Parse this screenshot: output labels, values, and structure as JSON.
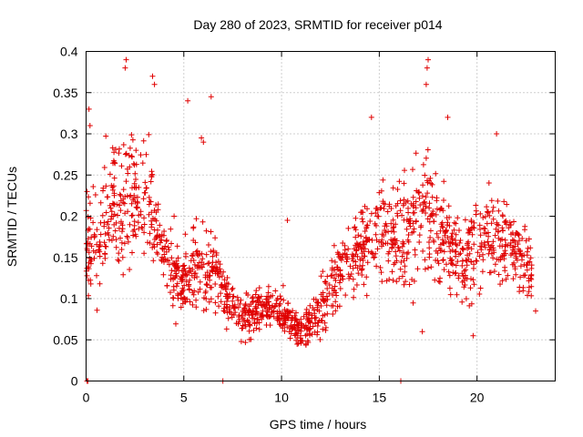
{
  "chart_data": {
    "type": "scatter",
    "title": "Day 280 of 2023, SRMTID for receiver p014",
    "xlabel": "GPS time / hours",
    "ylabel": "SRMTID / TECUs",
    "xlim": [
      0,
      24
    ],
    "ylim": [
      0,
      0.4
    ],
    "xticks": [
      0,
      5,
      10,
      15,
      20
    ],
    "xtick_labels": [
      "0",
      "5",
      "10",
      "15",
      "20"
    ],
    "yticks": [
      0,
      0.05,
      0.1,
      0.15,
      0.2,
      0.25,
      0.3,
      0.35,
      0.4
    ],
    "ytick_labels": [
      "0",
      "0.05",
      "0.1",
      "0.15",
      "0.2",
      "0.25",
      "0.3",
      "0.35",
      "0.4"
    ],
    "grid": true,
    "marker": "+",
    "color": "#e00000",
    "series": [
      {
        "name": "SRMTID",
        "trend": [
          [
            0.0,
            0.16
          ],
          [
            0.5,
            0.17
          ],
          [
            1.0,
            0.2
          ],
          [
            1.5,
            0.22
          ],
          [
            2.0,
            0.22
          ],
          [
            2.5,
            0.22
          ],
          [
            3.0,
            0.22
          ],
          [
            3.5,
            0.2
          ],
          [
            4.0,
            0.16
          ],
          [
            4.5,
            0.13
          ],
          [
            5.0,
            0.12
          ],
          [
            5.5,
            0.14
          ],
          [
            6.0,
            0.14
          ],
          [
            6.5,
            0.13
          ],
          [
            7.0,
            0.11
          ],
          [
            7.5,
            0.09
          ],
          [
            8.0,
            0.08
          ],
          [
            8.5,
            0.085
          ],
          [
            9.0,
            0.09
          ],
          [
            9.5,
            0.09
          ],
          [
            10.0,
            0.085
          ],
          [
            10.5,
            0.07
          ],
          [
            11.0,
            0.06
          ],
          [
            11.5,
            0.07
          ],
          [
            12.0,
            0.09
          ],
          [
            12.5,
            0.11
          ],
          [
            13.0,
            0.13
          ],
          [
            13.5,
            0.15
          ],
          [
            14.0,
            0.16
          ],
          [
            14.5,
            0.17
          ],
          [
            15.0,
            0.18
          ],
          [
            15.5,
            0.18
          ],
          [
            16.0,
            0.18
          ],
          [
            16.5,
            0.19
          ],
          [
            17.0,
            0.19
          ],
          [
            17.5,
            0.2
          ],
          [
            18.0,
            0.18
          ],
          [
            18.5,
            0.17
          ],
          [
            19.0,
            0.15
          ],
          [
            19.5,
            0.15
          ],
          [
            20.0,
            0.16
          ],
          [
            20.5,
            0.17
          ],
          [
            21.0,
            0.18
          ],
          [
            21.5,
            0.17
          ],
          [
            22.0,
            0.16
          ],
          [
            22.5,
            0.15
          ],
          [
            22.8,
            0.13
          ]
        ],
        "spread": [
          [
            0.0,
            0.05
          ],
          [
            2.0,
            0.08
          ],
          [
            3.0,
            0.07
          ],
          [
            4.0,
            0.04
          ],
          [
            5.0,
            0.04
          ],
          [
            6.0,
            0.05
          ],
          [
            7.0,
            0.03
          ],
          [
            9.0,
            0.025
          ],
          [
            11.0,
            0.02
          ],
          [
            12.0,
            0.03
          ],
          [
            14.0,
            0.05
          ],
          [
            16.0,
            0.06
          ],
          [
            17.5,
            0.07
          ],
          [
            19.0,
            0.05
          ],
          [
            21.0,
            0.05
          ],
          [
            22.8,
            0.03
          ]
        ],
        "outliers": [
          [
            0.05,
            0.0
          ],
          [
            0.1,
            0.0
          ],
          [
            0.15,
            0.33
          ],
          [
            0.2,
            0.31
          ],
          [
            2.0,
            0.38
          ],
          [
            2.05,
            0.39
          ],
          [
            3.4,
            0.37
          ],
          [
            3.5,
            0.36
          ],
          [
            6.4,
            0.345
          ],
          [
            5.2,
            0.34
          ],
          [
            6.0,
            0.29
          ],
          [
            5.9,
            0.295
          ],
          [
            10.3,
            0.195
          ],
          [
            14.6,
            0.32
          ],
          [
            17.5,
            0.39
          ],
          [
            17.45,
            0.38
          ],
          [
            17.4,
            0.36
          ],
          [
            18.5,
            0.32
          ],
          [
            21.0,
            0.3
          ],
          [
            16.1,
            0.0
          ],
          [
            7.0,
            0.0
          ],
          [
            17.2,
            0.06
          ],
          [
            19.8,
            0.055
          ],
          [
            23.0,
            0.085
          ],
          [
            4.5,
            0.2
          ]
        ]
      }
    ]
  }
}
